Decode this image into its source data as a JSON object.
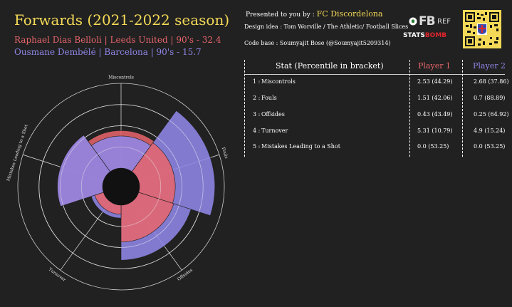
{
  "header": {
    "title": "Forwards (2021-2022 season)",
    "player1_line": "Raphael Dias Belloli | Leeds United | 90's - 32.4",
    "player2_line": "Ousmane Dembélé | Barcelona | 90's - 15.7",
    "presented_prefix": "Presented to you by :",
    "presented_club": "FC Discordelona",
    "design_line": "Design idea :  Tom Worville / The Athletic/ Football Slices",
    "codebase_line": "Code base :  Soumyajit Bose (@Soumyajit5209314)"
  },
  "logos": {
    "fbref_fb": "FB",
    "fbref_ref": "REF",
    "statsbomb_a": "STATS",
    "statsbomb_b": "BOMB"
  },
  "colors": {
    "background": "#212121",
    "title": "#f3d957",
    "player1": "#e9656b",
    "player2": "#8e86e6"
  },
  "table": {
    "headers": {
      "stat": "Stat (Percentile in bracket)",
      "player1": "Player 1",
      "player2": "Player 2"
    },
    "rows": [
      {
        "num": "1 :",
        "stat": "Miscontrols",
        "p1": "2.53 (44.29)",
        "p2": "2.68 (37.86)"
      },
      {
        "num": "2 :",
        "stat": "Fouls",
        "p1": "1.51 (42.06)",
        "p2": "0.7 (88.89)"
      },
      {
        "num": "3 :",
        "stat": "Offsides",
        "p1": "0.43 (43.49)",
        "p2": "0.25 (64.92)"
      },
      {
        "num": "4 :",
        "stat": "Turnover",
        "p1": "5.31 (10.79)",
        "p2": "4.9 (15.24)"
      },
      {
        "num": "5 :",
        "stat": "Mistakes Leading to a Shot",
        "p1": "0.0 (53.25)",
        "p2": "0.0 (53.25)"
      }
    ]
  },
  "chart_data": {
    "type": "pie",
    "subtype": "polar-percentile",
    "categories": [
      "Miscontrols",
      "Fouls",
      "Offsides",
      "Turnover",
      "Mistakes Leading to a Shot"
    ],
    "rlim": [
      0,
      100
    ],
    "grid": true,
    "series": [
      {
        "name": "Raphael Dias Belloli",
        "color": "#e9656b",
        "values": [
          44.29,
          42.06,
          43.49,
          10.79,
          53.25
        ]
      },
      {
        "name": "Ousmane Dembélé",
        "color": "#8e86e6",
        "values": [
          37.86,
          88.89,
          64.92,
          15.24,
          53.25
        ]
      }
    ]
  }
}
